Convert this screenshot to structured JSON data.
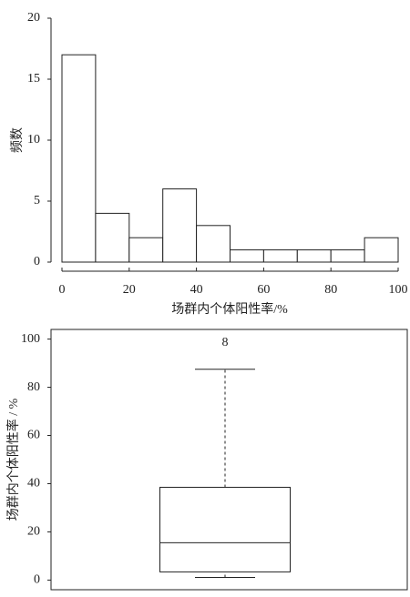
{
  "chart_data": [
    {
      "type": "histogram",
      "ylabel": "频数",
      "xlabel": "场群内个体阳性率/%",
      "bins": [
        0,
        10,
        20,
        30,
        40,
        50,
        60,
        70,
        80,
        90,
        100
      ],
      "values": [
        17,
        4,
        2,
        6,
        3,
        1,
        1,
        1,
        1,
        2
      ],
      "xlim": [
        0,
        100
      ],
      "xticks": [
        0,
        20,
        40,
        60,
        80,
        100
      ],
      "ylim": [
        0,
        20
      ],
      "yticks": [
        0,
        5,
        10,
        15,
        20
      ],
      "color": "#ffffff"
    },
    {
      "type": "box",
      "ylabel": "场群内个体阳性率 / %",
      "annotation": "8",
      "min": 1.1,
      "q1": 3.4,
      "median": 15.5,
      "q3": 38.5,
      "max": 87.5,
      "ylim": [
        -4,
        104
      ],
      "yticks": [
        0,
        20,
        40,
        60,
        80,
        100
      ]
    }
  ]
}
